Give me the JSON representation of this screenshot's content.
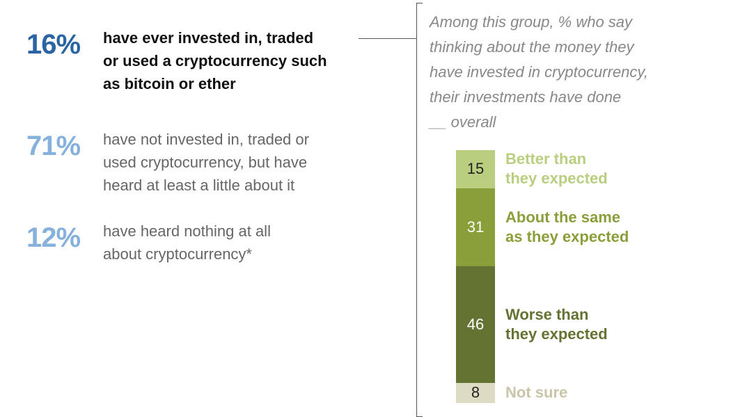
{
  "stats": [
    {
      "pct": "16%",
      "text": "have ever invested in, traded or used a cryptocurrency such as bitcoin or ether"
    },
    {
      "pct": "71%",
      "text": "have not invested in, traded or used cryptocurrency, but have heard at least a little about it"
    },
    {
      "pct": "12%",
      "text": "have heard nothing at all about cryptocurrency*"
    }
  ],
  "stat_lines": [
    [
      "have ever invested in, traded",
      "or used a cryptocurrency such",
      "as bitcoin or ether"
    ],
    [
      "have not invested in, traded or",
      "used cryptocurrency, but have",
      "heard at least a little about it"
    ],
    [
      "have heard nothing at all",
      "about cryptocurrency*"
    ]
  ],
  "chart_data": {
    "type": "bar",
    "stacked": true,
    "orientation": "vertical",
    "title_lines": [
      "Among this group, % who say",
      "thinking about the money they",
      "have invested in cryptocurrency,",
      "their investments have done",
      "__ overall"
    ],
    "categories": [
      "Better than they expected",
      "About the same as they expected",
      "Worse than they expected",
      "Not sure"
    ],
    "label_lines": [
      [
        "Better than",
        "they expected"
      ],
      [
        "About the same",
        "as they expected"
      ],
      [
        "Worse than",
        "they expected"
      ],
      [
        "Not sure"
      ]
    ],
    "values": [
      15,
      31,
      46,
      8
    ],
    "colors": [
      "#b9cf7f",
      "#8a9e3a",
      "#647232",
      "#dedbc5"
    ],
    "value_text_colors": [
      "#222222",
      "#ffffff",
      "#ffffff",
      "#222222"
    ],
    "label_colors": [
      "#b9cf7f",
      "#8a9e3a",
      "#647232",
      "#c9c5a8"
    ]
  }
}
